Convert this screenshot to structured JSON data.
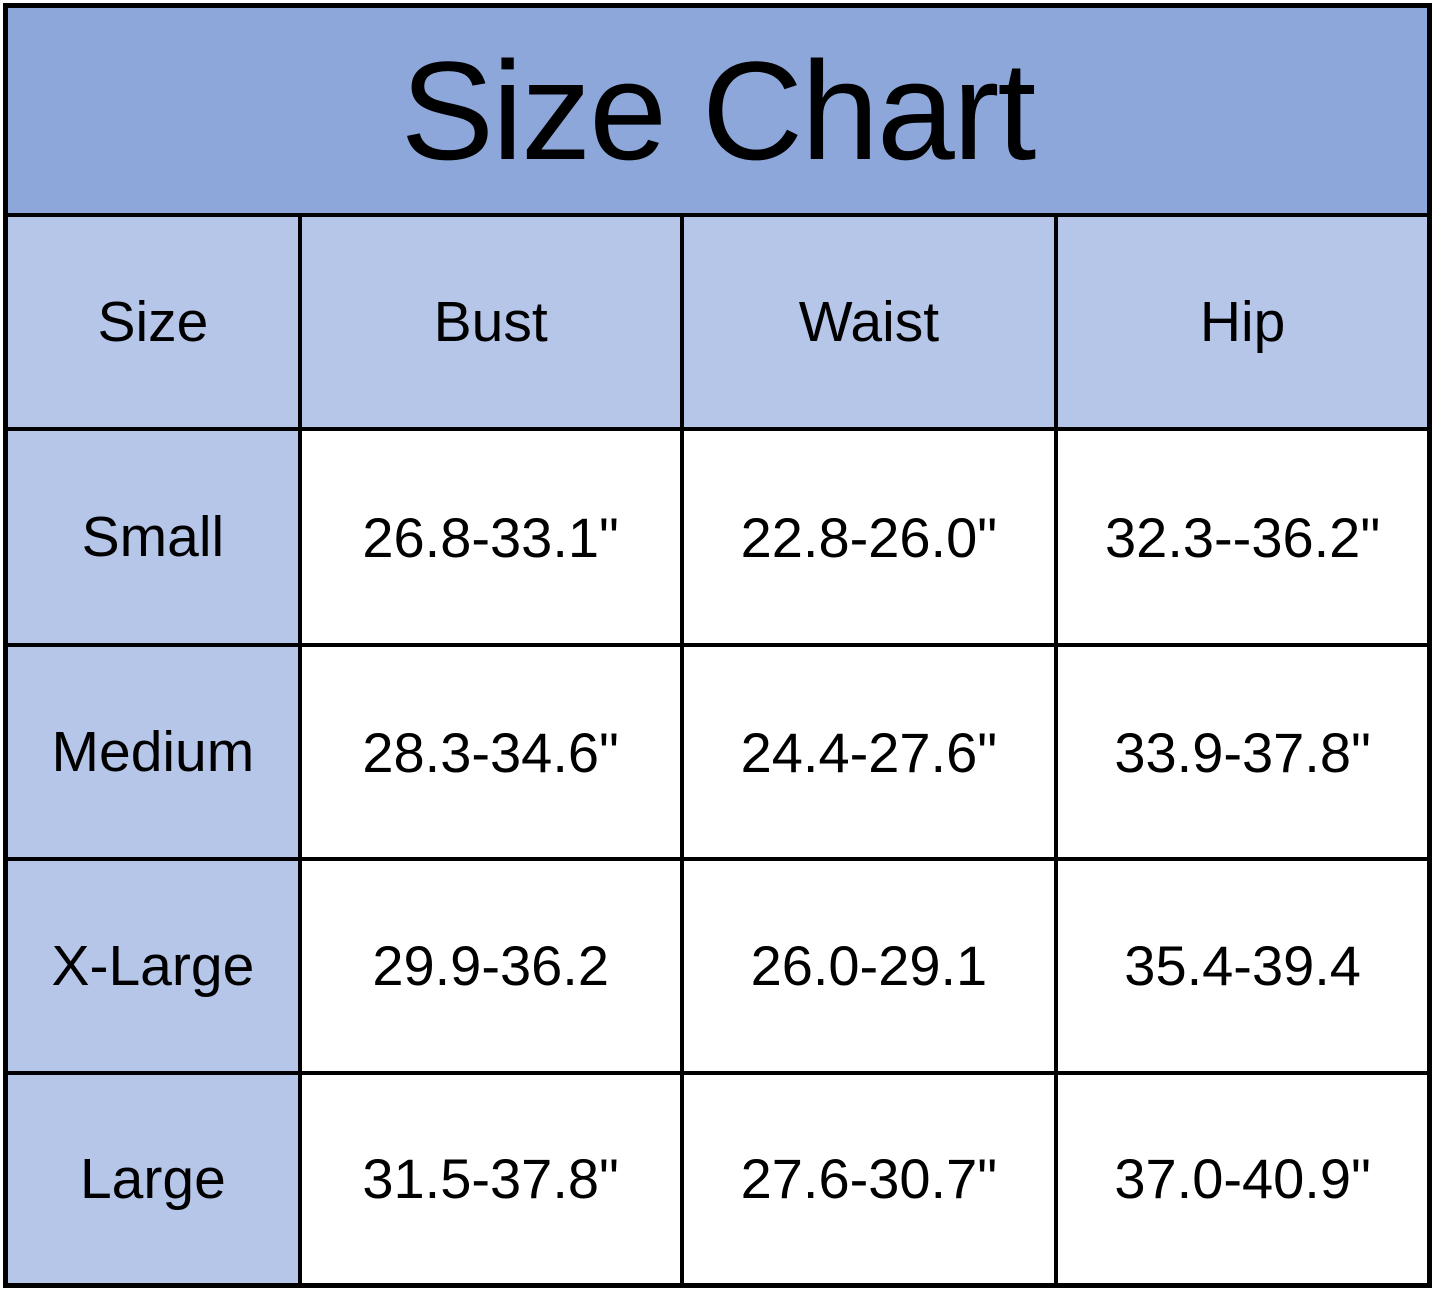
{
  "title": "Size Chart",
  "table": {
    "columns": [
      "Size",
      "Bust",
      "Waist",
      "Hip"
    ],
    "rows": [
      [
        "Small",
        "26.8-33.1\"",
        "22.8-26.0\"",
        "32.3--36.2\""
      ],
      [
        "Medium",
        "28.3-34.6\"",
        "24.4-27.6\"",
        "33.9-37.8\""
      ],
      [
        "X-Large",
        "29.9-36.2",
        "26.0-29.1",
        "35.4-39.4"
      ],
      [
        "Large",
        "31.5-37.8\"",
        "27.6-30.7\"",
        "37.0-40.9\""
      ]
    ]
  },
  "colors": {
    "title_bg": "#8DA7DA",
    "header_bg": "#B6C6E8",
    "cell_bg": "#FFFFFF",
    "grid_line": "#000000",
    "text": "#000000"
  },
  "chart_data": {
    "type": "table",
    "title": "Size Chart",
    "columns": [
      "Size",
      "Bust",
      "Waist",
      "Hip"
    ],
    "rows": [
      {
        "size": "Small",
        "bust": "26.8-33.1\"",
        "waist": "22.8-26.0\"",
        "hip": "32.3--36.2\""
      },
      {
        "size": "Medium",
        "bust": "28.3-34.6\"",
        "waist": "24.4-27.6\"",
        "hip": "33.9-37.8\""
      },
      {
        "size": "X-Large",
        "bust": "29.9-36.2",
        "waist": "26.0-29.1",
        "hip": "35.4-39.4"
      },
      {
        "size": "Large",
        "bust": "31.5-37.8\"",
        "waist": "27.6-30.7\"",
        "hip": "37.0-40.9\""
      }
    ],
    "units": "inches",
    "layout": {
      "title_row_bg": "#8DA7DA",
      "header_row_bg": "#B6C6E8",
      "label_col_bg": "#B6C6E8",
      "grid": "black solid"
    }
  }
}
